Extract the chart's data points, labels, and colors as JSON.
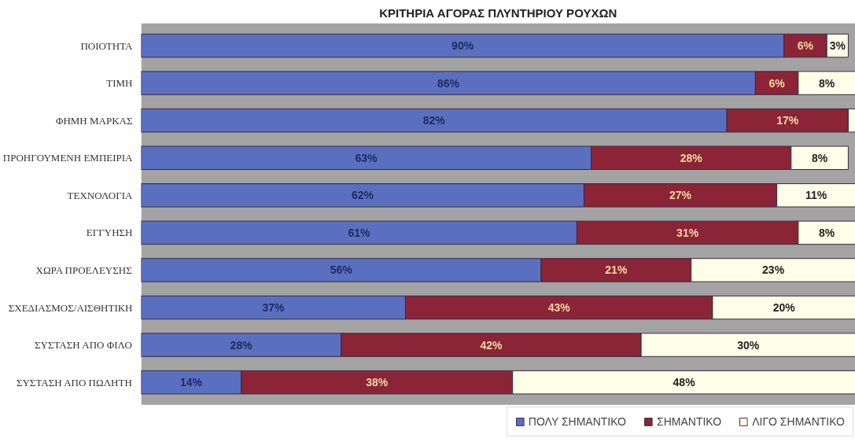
{
  "chart_data": {
    "type": "bar",
    "orientation": "horizontal",
    "stacked": true,
    "title": "ΚΡΙΤΗΡΙΑ ΑΓΟΡΑΣ ΠΛΥΝΤΗΡΙΟΥ ΡΟΥΧΩΝ",
    "categories": [
      "ΠΟΙΟΤΗΤΑ",
      "ΤΙΜΗ",
      "ΦΗΜΗ ΜΑΡΚΑΣ",
      "ΠΡΟΗΓΟΥΜΕΝΗ ΕΜΠΕΙΡΙΑ",
      "ΤΕΧΝΟΛΟΓΙΑ",
      "ΕΓΓΥΗΣΗ",
      "ΧΩΡΑ ΠΡΟΕΛΕΥΣΗΣ",
      "ΣΧΕΔΙΑΣΜΟΣ/ΑΙΣΘΗΤΙΚΗ",
      "ΣΥΣΤΑΣΗ ΑΠΟ ΦΙΛΟ",
      "ΣΥΣΤΑΣΗ ΑΠΟ ΠΩΛΗΤΗ"
    ],
    "series": [
      {
        "name": "ΠΟΛΥ ΣΗΜΑΝΤΙΚΟ",
        "color": "#5a6fc0",
        "values": [
          90,
          86,
          82,
          63,
          62,
          61,
          56,
          37,
          28,
          14
        ],
        "value_labels": [
          "90%",
          "86%",
          "82%",
          "63%",
          "62%",
          "61%",
          "56%",
          "37%",
          "28%",
          "14%"
        ]
      },
      {
        "name": "ΣΗΜΑΝΤΙΚΟ",
        "color": "#8b2437",
        "values": [
          6,
          6,
          17,
          28,
          27,
          31,
          21,
          43,
          42,
          38
        ],
        "value_labels": [
          "6%",
          "6%",
          "17%",
          "28%",
          "27%",
          "31%",
          "21%",
          "43%",
          "42%",
          "38%"
        ]
      },
      {
        "name": "ΛΙΓΟ ΣΗΜΑΝΤΙΚΟ",
        "color": "#fdfde8",
        "values": [
          3,
          8,
          1,
          8,
          11,
          8,
          23,
          20,
          30,
          48
        ],
        "value_labels": [
          "3%",
          "8%",
          null,
          "8%",
          "11%",
          "8%",
          "23%",
          "20%",
          "30%",
          "48%"
        ]
      }
    ],
    "xlim": [
      0,
      100
    ],
    "tick_labels": "y",
    "legend": "bottom right"
  }
}
